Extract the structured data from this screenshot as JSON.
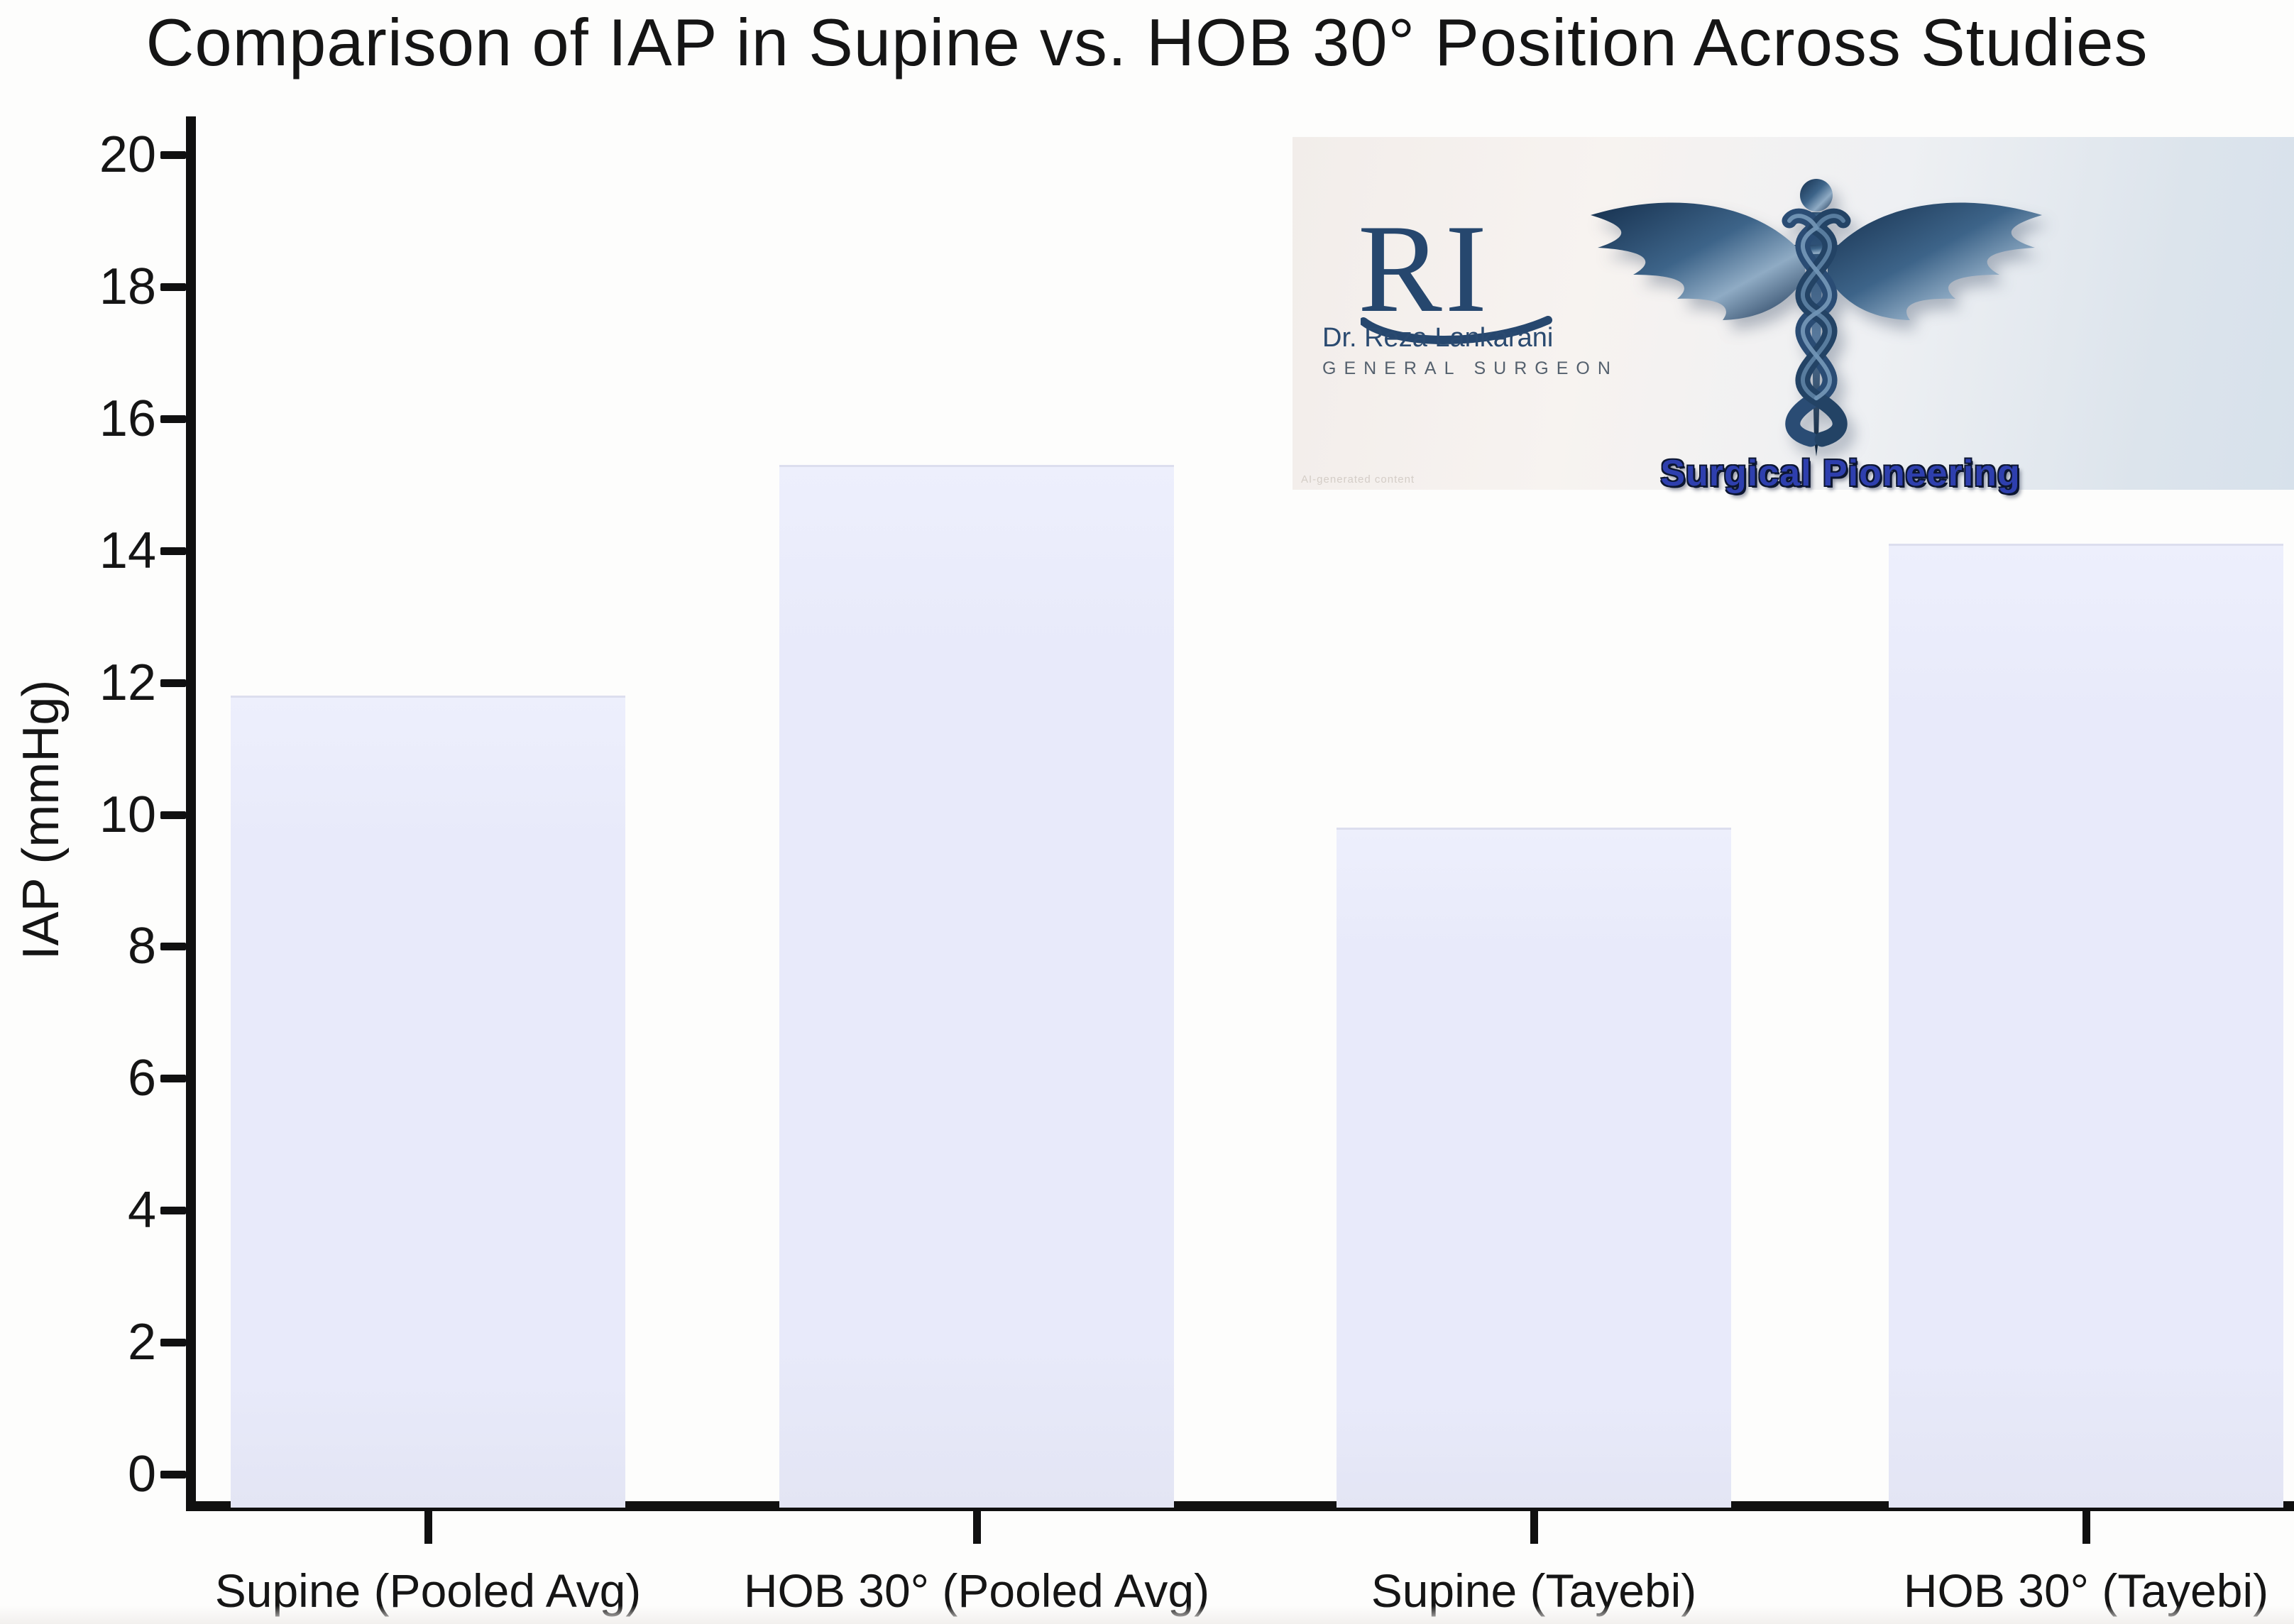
{
  "chart_data": {
    "type": "bar",
    "title": "Comparison of IAP in Supine vs. HOB 30° Position Across Studies",
    "categories": [
      "Supine (Pooled Avg)",
      "HOB 30° (Pooled Avg)",
      "Supine (Tayebi)",
      "HOB 30° (Tayebi)"
    ],
    "values": [
      11.8,
      15.3,
      9.8,
      14.1
    ],
    "xlabel": "",
    "ylabel": "IAP (mmHg)",
    "ylim": [
      0,
      20
    ],
    "yticks": [
      0,
      2,
      4,
      6,
      8,
      10,
      12,
      14,
      16,
      18,
      20
    ],
    "grid": false,
    "legend_position": "none",
    "bar_color": "#e8eafa",
    "axis_color": "#101010",
    "text_color": "#151515"
  },
  "logo": {
    "monogram": "RI",
    "name": "Dr. Reza Lankarani",
    "subtitle": "GENERAL SURGEON",
    "tagline": "Surgical Pioneering",
    "watermark": "AI-generated content",
    "icon": "caduceus-icon",
    "colors": {
      "navy": "#26476e",
      "tagline_blue": "#2e3fae",
      "background_left": "#f2edea",
      "background_right": "#d7e1eb"
    }
  }
}
